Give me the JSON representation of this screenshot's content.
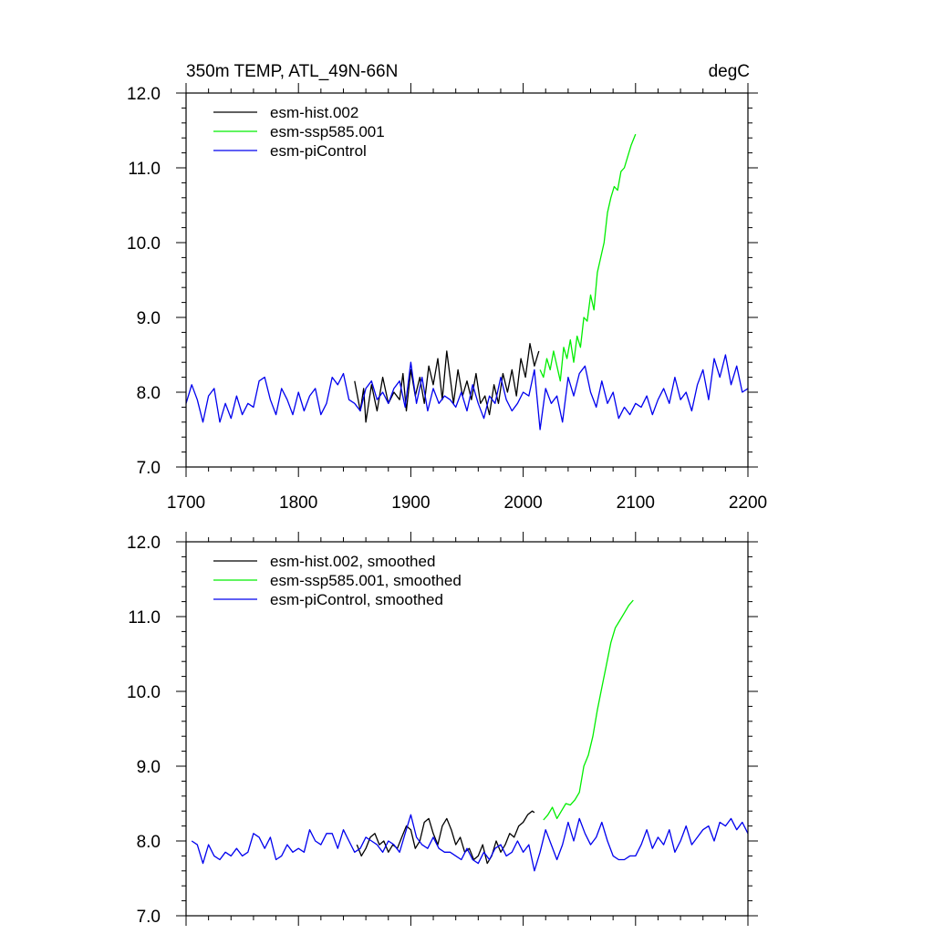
{
  "figure": {
    "title_left": "350m TEMP, ATL_49N-66N",
    "title_right": "degC"
  },
  "chart_data": [
    {
      "type": "line",
      "title": "350m TEMP, ATL_49N-66N",
      "units": "degC",
      "xlim": [
        1700,
        2200
      ],
      "ylim": [
        7.0,
        12.0
      ],
      "x_tick_labels": [
        "1700",
        "1800",
        "1900",
        "2000",
        "2100",
        "2200"
      ],
      "y_tick_labels": [
        "7.0",
        "8.0",
        "9.0",
        "10.0",
        "11.0",
        "12.0"
      ],
      "legend_position": "top-left",
      "series": [
        {
          "name": "esm-hist.002",
          "color": "#000000",
          "x": [
            1850,
            1855,
            1858,
            1860,
            1865,
            1870,
            1875,
            1880,
            1885,
            1890,
            1893,
            1896,
            1900,
            1904,
            1908,
            1912,
            1916,
            1920,
            1924,
            1928,
            1932,
            1935,
            1938,
            1942,
            1946,
            1950,
            1954,
            1958,
            1962,
            1966,
            1970,
            1974,
            1978,
            1982,
            1986,
            1990,
            1994,
            1998,
            2002,
            2006,
            2010,
            2014
          ],
          "values": [
            8.15,
            7.75,
            8.05,
            7.6,
            8.1,
            7.75,
            8.2,
            7.85,
            8.0,
            7.9,
            8.25,
            7.75,
            8.3,
            7.95,
            8.2,
            7.85,
            8.35,
            8.1,
            8.45,
            7.9,
            8.55,
            8.2,
            7.85,
            8.3,
            7.95,
            8.15,
            7.9,
            8.25,
            7.85,
            7.95,
            7.7,
            8.1,
            7.85,
            8.25,
            8.0,
            8.3,
            7.95,
            8.45,
            8.2,
            8.65,
            8.35,
            8.55
          ]
        },
        {
          "name": "esm-ssp585.001",
          "color": "#00ee00",
          "x": [
            2015,
            2018,
            2021,
            2024,
            2027,
            2030,
            2033,
            2036,
            2039,
            2042,
            2045,
            2048,
            2051,
            2054,
            2057,
            2060,
            2063,
            2066,
            2069,
            2072,
            2075,
            2078,
            2081,
            2084,
            2087,
            2090,
            2093,
            2096,
            2100
          ],
          "values": [
            8.3,
            8.2,
            8.45,
            8.3,
            8.55,
            8.35,
            8.15,
            8.6,
            8.45,
            8.7,
            8.4,
            8.75,
            8.6,
            9.0,
            8.95,
            9.3,
            9.1,
            9.6,
            9.8,
            10.0,
            10.4,
            10.6,
            10.75,
            10.7,
            10.95,
            11.0,
            11.15,
            11.3,
            11.45
          ]
        },
        {
          "name": "esm-piControl",
          "color": "#0000ee",
          "x": [
            1700,
            1705,
            1710,
            1715,
            1720,
            1725,
            1730,
            1735,
            1740,
            1745,
            1750,
            1755,
            1760,
            1765,
            1770,
            1775,
            1780,
            1785,
            1790,
            1795,
            1800,
            1805,
            1810,
            1815,
            1820,
            1825,
            1830,
            1835,
            1840,
            1845,
            1850,
            1855,
            1860,
            1865,
            1870,
            1875,
            1880,
            1885,
            1890,
            1895,
            1900,
            1905,
            1910,
            1915,
            1920,
            1925,
            1930,
            1935,
            1940,
            1945,
            1950,
            1955,
            1960,
            1965,
            1970,
            1975,
            1980,
            1985,
            1990,
            1995,
            2000,
            2005,
            2010,
            2015,
            2020,
            2025,
            2030,
            2035,
            2040,
            2045,
            2050,
            2055,
            2060,
            2065,
            2070,
            2075,
            2080,
            2085,
            2090,
            2095,
            2100,
            2105,
            2110,
            2115,
            2120,
            2125,
            2130,
            2135,
            2140,
            2145,
            2150,
            2155,
            2160,
            2165,
            2170,
            2175,
            2180,
            2185,
            2190,
            2195,
            2200
          ],
          "values": [
            7.85,
            8.1,
            7.9,
            7.6,
            7.95,
            8.05,
            7.6,
            7.85,
            7.65,
            7.95,
            7.7,
            7.85,
            7.8,
            8.15,
            8.2,
            7.9,
            7.7,
            8.05,
            7.9,
            7.7,
            8.0,
            7.75,
            7.95,
            8.05,
            7.7,
            7.85,
            8.2,
            8.1,
            8.25,
            7.9,
            7.85,
            7.75,
            8.05,
            8.15,
            7.9,
            8.0,
            7.85,
            8.05,
            8.15,
            7.8,
            8.4,
            7.85,
            8.2,
            7.75,
            8.05,
            7.85,
            7.95,
            7.9,
            7.8,
            8.0,
            7.75,
            8.1,
            7.85,
            7.65,
            7.95,
            7.85,
            8.2,
            7.9,
            7.75,
            7.85,
            8.0,
            7.95,
            8.3,
            7.5,
            8.05,
            7.85,
            7.95,
            7.6,
            8.2,
            7.95,
            8.25,
            8.35,
            8.0,
            7.8,
            8.15,
            7.85,
            8.0,
            7.65,
            7.8,
            7.7,
            7.85,
            7.8,
            7.95,
            7.7,
            7.9,
            8.05,
            7.85,
            8.2,
            7.9,
            8.0,
            7.75,
            8.1,
            8.3,
            7.9,
            8.45,
            8.2,
            8.5,
            8.1,
            8.35,
            8.0,
            8.05
          ]
        }
      ]
    },
    {
      "type": "line",
      "xlim": [
        1700,
        2200
      ],
      "ylim": [
        7.0,
        12.0
      ],
      "y_tick_labels": [
        "7.0",
        "8.0",
        "9.0",
        "10.0",
        "11.0",
        "12.0"
      ],
      "legend_position": "top-left",
      "series": [
        {
          "name": "esm-hist.002, smoothed",
          "color": "#000000",
          "x": [
            1852,
            1856,
            1860,
            1864,
            1868,
            1872,
            1876,
            1880,
            1884,
            1888,
            1892,
            1896,
            1900,
            1904,
            1908,
            1912,
            1916,
            1920,
            1924,
            1928,
            1932,
            1936,
            1940,
            1944,
            1948,
            1952,
            1956,
            1960,
            1964,
            1968,
            1972,
            1976,
            1980,
            1984,
            1988,
            1992,
            1996,
            2000,
            2004,
            2008,
            2010
          ],
          "values": [
            7.95,
            7.8,
            7.9,
            8.05,
            8.1,
            7.95,
            8.0,
            7.85,
            7.95,
            7.9,
            8.05,
            8.2,
            8.15,
            7.9,
            8.0,
            8.25,
            8.3,
            8.1,
            7.95,
            8.2,
            8.3,
            8.15,
            7.95,
            8.05,
            7.85,
            7.9,
            7.75,
            7.8,
            7.95,
            7.7,
            7.8,
            8.0,
            7.85,
            7.95,
            8.1,
            8.05,
            8.2,
            8.25,
            8.35,
            8.4,
            8.38
          ]
        },
        {
          "name": "esm-ssp585.001, smoothed",
          "color": "#00ee00",
          "x": [
            2018,
            2022,
            2026,
            2030,
            2034,
            2038,
            2042,
            2046,
            2050,
            2054,
            2058,
            2062,
            2066,
            2070,
            2074,
            2078,
            2082,
            2086,
            2090,
            2094,
            2098
          ],
          "values": [
            8.28,
            8.35,
            8.45,
            8.3,
            8.4,
            8.5,
            8.48,
            8.55,
            8.65,
            9.0,
            9.15,
            9.4,
            9.75,
            10.05,
            10.35,
            10.65,
            10.85,
            10.95,
            11.05,
            11.15,
            11.22
          ]
        },
        {
          "name": "esm-piControl, smoothed",
          "color": "#0000ee",
          "x": [
            1705,
            1710,
            1715,
            1720,
            1725,
            1730,
            1735,
            1740,
            1745,
            1750,
            1755,
            1760,
            1765,
            1770,
            1775,
            1780,
            1785,
            1790,
            1795,
            1800,
            1805,
            1810,
            1815,
            1820,
            1825,
            1830,
            1835,
            1840,
            1845,
            1850,
            1855,
            1860,
            1865,
            1870,
            1875,
            1880,
            1885,
            1890,
            1895,
            1900,
            1905,
            1910,
            1915,
            1920,
            1925,
            1930,
            1935,
            1940,
            1945,
            1950,
            1955,
            1960,
            1965,
            1970,
            1975,
            1980,
            1985,
            1990,
            1995,
            2000,
            2005,
            2010,
            2015,
            2020,
            2025,
            2030,
            2035,
            2040,
            2045,
            2050,
            2055,
            2060,
            2065,
            2070,
            2075,
            2080,
            2085,
            2090,
            2095,
            2100,
            2105,
            2110,
            2115,
            2120,
            2125,
            2130,
            2135,
            2140,
            2145,
            2150,
            2155,
            2160,
            2165,
            2170,
            2175,
            2180,
            2185,
            2190,
            2195,
            2200
          ],
          "values": [
            8.0,
            7.95,
            7.7,
            7.95,
            7.8,
            7.75,
            7.85,
            7.8,
            7.9,
            7.8,
            7.85,
            8.1,
            8.05,
            7.9,
            8.05,
            7.75,
            7.8,
            7.95,
            7.85,
            7.9,
            7.85,
            8.15,
            8.0,
            7.95,
            8.1,
            8.1,
            7.9,
            8.15,
            8.0,
            7.85,
            7.9,
            8.05,
            8.0,
            7.95,
            7.85,
            8.0,
            7.95,
            7.85,
            8.1,
            8.35,
            8.05,
            7.95,
            7.9,
            8.05,
            7.9,
            7.85,
            7.85,
            7.8,
            7.75,
            7.9,
            7.75,
            7.7,
            7.85,
            7.75,
            7.9,
            7.95,
            7.8,
            7.85,
            8.0,
            7.85,
            7.95,
            7.6,
            7.85,
            8.15,
            7.95,
            7.75,
            7.95,
            8.25,
            8.0,
            8.3,
            8.1,
            7.95,
            8.05,
            8.25,
            8.0,
            7.8,
            7.75,
            7.75,
            7.8,
            7.8,
            7.95,
            8.15,
            7.9,
            8.05,
            7.95,
            8.15,
            7.85,
            8.0,
            8.2,
            7.95,
            8.05,
            8.15,
            8.2,
            8.0,
            8.25,
            8.2,
            8.3,
            8.15,
            8.25,
            8.1
          ]
        }
      ]
    }
  ]
}
